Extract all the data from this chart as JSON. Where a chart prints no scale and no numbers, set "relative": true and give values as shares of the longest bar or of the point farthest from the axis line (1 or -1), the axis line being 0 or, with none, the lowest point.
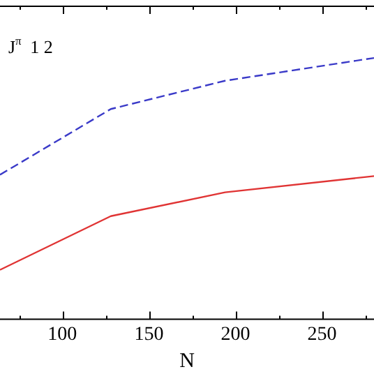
{
  "chart_data": {
    "type": "line",
    "relative": true,
    "xlabel": "N",
    "annotations": [
      "J$^{π}$ 1 2"
    ],
    "xlim": [
      64,
      280
    ],
    "xticks": [
      {
        "value": 75,
        "label": null
      },
      100,
      {
        "value": 125,
        "label": null
      },
      150,
      {
        "value": 175,
        "label": null
      },
      200,
      {
        "value": 225,
        "label": null
      },
      250,
      {
        "value": 275,
        "label": null
      }
    ],
    "series": [
      {
        "color": "#3a3ac8",
        "line_style": "dashed",
        "x": [
          64,
          128,
          194,
          280
        ],
        "values": [
          0.554,
          0.805,
          0.913,
          1
        ]
      },
      {
        "color": "#e03434",
        "line_style": "solid",
        "x": [
          64,
          128,
          194,
          280
        ],
        "values": [
          0.191,
          0.396,
          0.487,
          0.549
        ]
      }
    ],
    "grid": false,
    "legend": false,
    "marker": "none"
  }
}
